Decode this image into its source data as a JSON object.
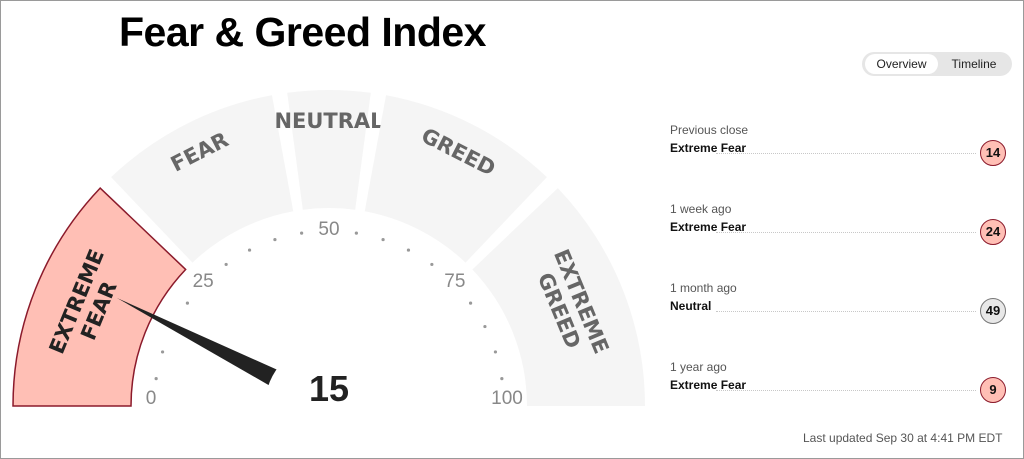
{
  "title": "Fear & Greed Index",
  "tabs": {
    "overview": "Overview",
    "timeline": "Timeline",
    "selected": "Overview"
  },
  "gauge": {
    "value": "15",
    "value_number": 15,
    "segments": [
      {
        "lines": [
          "EXTREME",
          "FEAR"
        ],
        "from": 0,
        "to": 25,
        "active": true
      },
      {
        "lines": [
          "FEAR"
        ],
        "from": 25,
        "to": 45,
        "active": false
      },
      {
        "lines": [
          "NEUTRAL"
        ],
        "from": 45,
        "to": 55,
        "active": false
      },
      {
        "lines": [
          "GREED"
        ],
        "from": 55,
        "to": 75,
        "active": false
      },
      {
        "lines": [
          "EXTREME",
          "GREED"
        ],
        "from": 75,
        "to": 100,
        "active": false
      }
    ],
    "scale_labels": [
      "0",
      "25",
      "50",
      "75",
      "100"
    ],
    "colors": {
      "active_fill": "#ffbfb5",
      "active_stroke": "#8b1a2b",
      "inactive_fill": "#f5f5f5",
      "label": "#666666",
      "needle": "#222222"
    }
  },
  "history": [
    {
      "label": "Previous close",
      "value": "Extreme Fear",
      "score": "14",
      "tone": "fear"
    },
    {
      "label": "1 week ago",
      "value": "Extreme Fear",
      "score": "24",
      "tone": "fear"
    },
    {
      "label": "1 month ago",
      "value": "Neutral",
      "score": "49",
      "tone": "neutral"
    },
    {
      "label": "1 year ago",
      "value": "Extreme Fear",
      "score": "9",
      "tone": "fear"
    }
  ],
  "last_updated": "Last updated Sep 30 at 4:41 PM EDT"
}
